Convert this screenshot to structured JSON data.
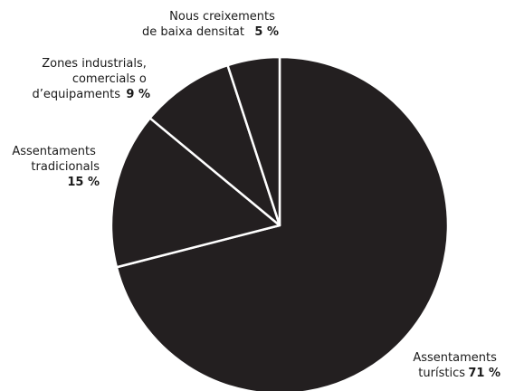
{
  "chart_data": {
    "type": "pie",
    "title": "",
    "slice_color": "#231f20",
    "separator_color": "#ffffff",
    "slices": [
      {
        "label_lines": [
          "Assentaments",
          "turístics"
        ],
        "pct_text": "71 %",
        "value": 71
      },
      {
        "label_lines": [
          "Assentaments",
          "tradicionals"
        ],
        "pct_text": "15 %",
        "value": 15
      },
      {
        "label_lines": [
          "Zones industrials,",
          "comercials o",
          "d’equipaments"
        ],
        "pct_text": "9 %",
        "value": 9
      },
      {
        "label_lines": [
          "Nous creixements",
          "de baixa densitat"
        ],
        "pct_text": "5 %",
        "value": 5
      }
    ]
  }
}
